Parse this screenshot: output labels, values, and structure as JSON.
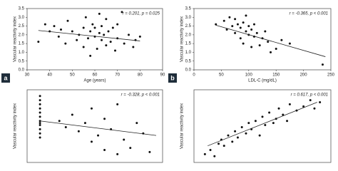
{
  "chart_data": [
    {
      "type": "scatter",
      "label": "a",
      "annotation": "r = 0.201, p = 0.025",
      "xlabel": "Age (years)",
      "ylabel": "Vascular reactivity index",
      "x": [
        35,
        38,
        40,
        42,
        44,
        45,
        47,
        48,
        50,
        52,
        53,
        55,
        55,
        56,
        57,
        58,
        58,
        59,
        60,
        60,
        61,
        62,
        62,
        63,
        63,
        64,
        65,
        65,
        66,
        67,
        68,
        69,
        70,
        70,
        72,
        73,
        75,
        77,
        78,
        80
      ],
      "y": [
        1.6,
        2.6,
        2.2,
        2.5,
        1.9,
        2.3,
        1.5,
        2.8,
        2.2,
        1.7,
        2.0,
        2.4,
        1.3,
        3.0,
        1.8,
        2.2,
        0.8,
        2.6,
        1.9,
        2.4,
        1.2,
        2.1,
        3.2,
        1.7,
        2.5,
        2.0,
        1.4,
        2.9,
        2.2,
        1.6,
        2.4,
        1.1,
        1.8,
        2.6,
        3.3,
        1.5,
        2.0,
        1.3,
        1.7,
        1.9
      ],
      "trend": {
        "x": [
          35,
          80
        ],
        "y": [
          2.25,
          1.65
        ]
      },
      "xlim": [
        30,
        90
      ],
      "xticks": [
        30,
        40,
        50,
        60,
        70,
        80,
        90
      ],
      "ylim": [
        0,
        3.5
      ],
      "yticks": [
        {
          "value": 0,
          "label": "0.0"
        },
        0.5,
        {
          "value": 1,
          "label": "1.0"
        },
        1.5,
        {
          "value": 2,
          "label": "2.0"
        },
        2.5,
        {
          "value": 3,
          "label": "3.0"
        },
        3.5
      ]
    },
    {
      "type": "scatter",
      "label": "b",
      "annotation": "r = -0.365, p < 0.001",
      "xlabel": "LDL-C (mg/dL)",
      "ylabel": "Vascular reactivity index",
      "x": [
        40,
        55,
        60,
        65,
        70,
        75,
        75,
        80,
        85,
        85,
        90,
        90,
        95,
        95,
        100,
        100,
        105,
        105,
        110,
        110,
        115,
        120,
        125,
        130,
        135,
        140,
        150,
        160,
        175,
        235
      ],
      "y": [
        2.6,
        2.8,
        2.3,
        3.0,
        2.5,
        2.1,
        2.9,
        2.6,
        1.8,
        2.4,
        2.7,
        1.5,
        2.2,
        3.1,
        2.0,
        2.5,
        1.3,
        2.3,
        1.9,
        2.6,
        2.1,
        1.4,
        1.8,
        2.2,
        1.6,
        1.0,
        1.2,
        1.7,
        1.5,
        0.3
      ],
      "trend": {
        "x": [
          40,
          240
        ],
        "y": [
          2.55,
          0.75
        ]
      },
      "xlim": [
        0,
        250
      ],
      "xticks": [
        0,
        50,
        100,
        150,
        200,
        250
      ],
      "ylim": [
        0,
        3.5
      ],
      "yticks": [
        {
          "value": 0,
          "label": "0.0"
        },
        0.5,
        {
          "value": 1,
          "label": "1.0"
        },
        1.5,
        {
          "value": 2,
          "label": "2.0"
        },
        2.5,
        {
          "value": 3,
          "label": "3.0"
        },
        3.5
      ]
    },
    {
      "type": "scatter",
      "annotation": "r = -0.328, p < 0.001",
      "ylabel": "Vascular reactivity index",
      "x": [
        10,
        10,
        10,
        10,
        10,
        10,
        10,
        10,
        10,
        10,
        10,
        10,
        25,
        30,
        35,
        40,
        45,
        50,
        50,
        55,
        60,
        60,
        65,
        70,
        70,
        75,
        80,
        85,
        90,
        95
      ],
      "y": [
        3.2,
        3.0,
        2.8,
        2.6,
        2.4,
        2.2,
        2.0,
        1.9,
        1.8,
        1.6,
        1.4,
        1.2,
        2.0,
        1.7,
        2.3,
        1.5,
        1.9,
        1.0,
        2.6,
        1.3,
        0.6,
        2.1,
        1.6,
        0.4,
        2.8,
        1.1,
        0.7,
        1.9,
        1.4,
        0.5
      ],
      "trend": {
        "x": [
          10,
          100
        ],
        "y": [
          2.0,
          1.3
        ]
      },
      "xlim": [
        0,
        105
      ],
      "ylim": [
        0,
        3.5
      ]
    },
    {
      "type": "scatter",
      "annotation": "r = 0.617, p < 0.001",
      "ylabel": "Vascular reactivity index",
      "x": [
        8,
        12,
        15,
        18,
        20,
        22,
        25,
        28,
        30,
        32,
        35,
        38,
        40,
        42,
        45,
        48,
        50,
        52,
        55,
        58,
        60,
        62,
        65,
        68,
        70,
        75,
        80,
        85,
        88,
        92
      ],
      "y": [
        0.4,
        0.6,
        0.3,
        0.9,
        1.1,
        0.8,
        1.3,
        1.0,
        1.5,
        1.2,
        1.7,
        1.4,
        1.9,
        1.6,
        2.0,
        1.3,
        2.2,
        1.8,
        2.4,
        1.9,
        2.1,
        2.6,
        2.3,
        2.0,
        2.8,
        2.5,
        2.7,
        3.0,
        2.6,
        2.9
      ],
      "trend": {
        "x": [
          10,
          90
        ],
        "y": [
          0.8,
          2.9
        ]
      },
      "xlim": [
        0,
        100
      ],
      "ylim": [
        0,
        3.5
      ]
    }
  ]
}
